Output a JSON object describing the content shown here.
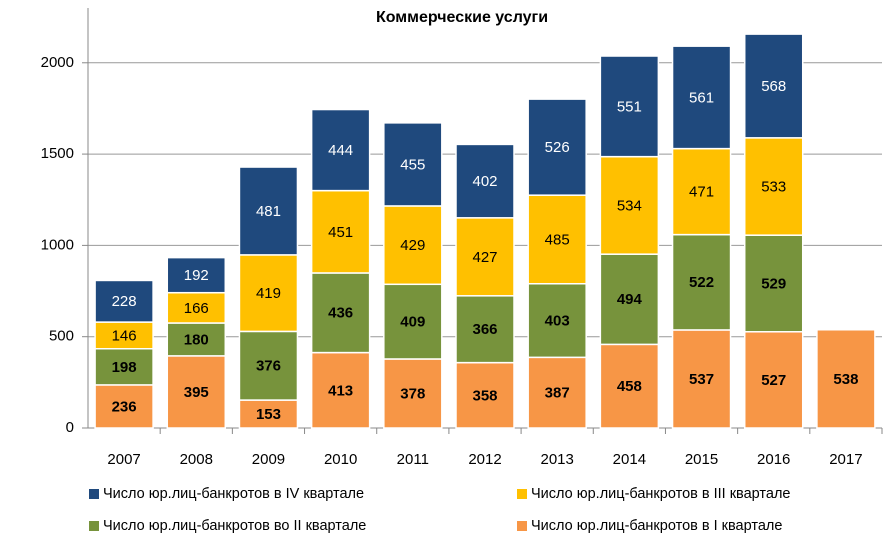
{
  "chart_data": {
    "type": "stacked_bar",
    "title": "Коммерческие услуги",
    "categories": [
      "2007",
      "2008",
      "2009",
      "2010",
      "2011",
      "2012",
      "2013",
      "2014",
      "2015",
      "2016",
      "2017"
    ],
    "series": [
      {
        "name": "Число юр.лиц-банкротов в I квартале",
        "color": "#f79646",
        "values": [
          236,
          395,
          153,
          413,
          378,
          358,
          387,
          458,
          537,
          527,
          538
        ]
      },
      {
        "name": "Число юр.лиц-банкротов во II квартале",
        "color": "#77933c",
        "values": [
          198,
          180,
          376,
          436,
          409,
          366,
          403,
          494,
          522,
          529,
          null
        ]
      },
      {
        "name": "Число юр.лиц-банкротов в III квартале",
        "color": "#ffc000",
        "values": [
          146,
          166,
          419,
          451,
          429,
          427,
          485,
          534,
          471,
          533,
          null
        ]
      },
      {
        "name": "Число юр.лиц-банкротов в IV квартале",
        "color": "#1f497d",
        "values": [
          228,
          192,
          481,
          444,
          455,
          402,
          526,
          551,
          561,
          568,
          null
        ]
      }
    ],
    "ylim": [
      0,
      2300
    ],
    "yticks": [
      0,
      500,
      1000,
      1500,
      2000
    ],
    "grid": true
  }
}
